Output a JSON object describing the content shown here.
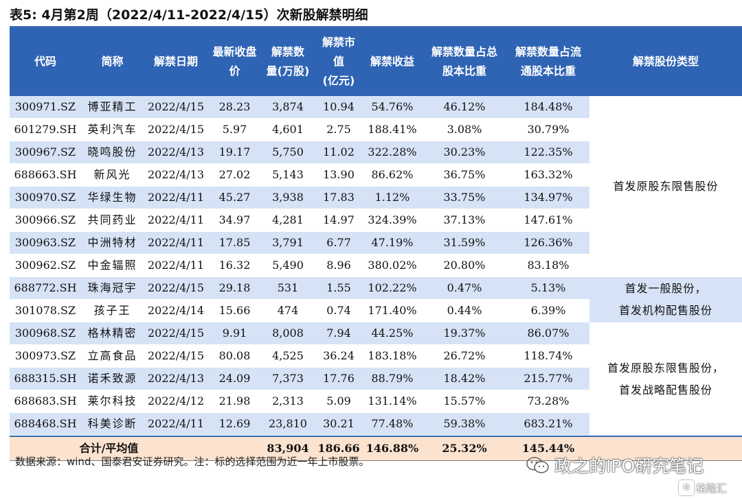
{
  "title": "表5:  4月第2周（2022/4/11-2022/4/15）次新股解禁明细",
  "table": {
    "headers": [
      "代码",
      "简称",
      "解禁日期",
      "最新收盘\n价",
      "解禁数\n量(万股)",
      "解禁市\n值\n(亿元)",
      "解禁收益",
      "解禁数量占总\n股本比重",
      "解禁数量占流\n通股本比重",
      "解禁股份类型"
    ],
    "rows": [
      [
        "300971.SZ",
        "博亚精工",
        "2022/4/15",
        "28.23",
        "3,874",
        "10.94",
        "54.76%",
        "46.12%",
        "184.48%"
      ],
      [
        "601279.SH",
        "英利汽车",
        "2022/4/15",
        "5.97",
        "4,601",
        "2.75",
        "188.41%",
        "3.08%",
        "30.79%"
      ],
      [
        "300967.SZ",
        "晓鸣股份",
        "2022/4/13",
        "19.17",
        "5,750",
        "11.02",
        "322.28%",
        "30.23%",
        "122.35%"
      ],
      [
        "688663.SH",
        "新风光",
        "2022/4/13",
        "27.02",
        "5,143",
        "13.90",
        "86.62%",
        "36.75%",
        "163.32%"
      ],
      [
        "300970.SZ",
        "华绿生物",
        "2022/4/11",
        "45.27",
        "3,938",
        "17.83",
        "1.12%",
        "33.75%",
        "134.97%"
      ],
      [
        "300966.SZ",
        "共同药业",
        "2022/4/11",
        "34.97",
        "4,281",
        "14.97",
        "324.39%",
        "37.13%",
        "147.61%"
      ],
      [
        "300963.SZ",
        "中洲特材",
        "2022/4/11",
        "17.85",
        "3,791",
        "6.77",
        "47.19%",
        "31.59%",
        "126.36%"
      ],
      [
        "300962.SZ",
        "中金辐照",
        "2022/4/11",
        "16.32",
        "5,490",
        "8.96",
        "380.02%",
        "20.80%",
        "83.18%"
      ],
      [
        "688772.SH",
        "珠海冠宇",
        "2022/4/15",
        "29.18",
        "531",
        "1.55",
        "102.22%",
        "0.47%",
        "5.13%"
      ],
      [
        "301078.SZ",
        "孩子王",
        "2022/4/14",
        "15.66",
        "474",
        "0.74",
        "171.40%",
        "0.44%",
        "6.39%"
      ],
      [
        "300968.SZ",
        "格林精密",
        "2022/4/15",
        "9.91",
        "8,008",
        "7.94",
        "44.25%",
        "19.37%",
        "86.07%"
      ],
      [
        "300973.SZ",
        "立高食品",
        "2022/4/15",
        "80.08",
        "4,525",
        "36.24",
        "183.18%",
        "26.72%",
        "118.74%"
      ],
      [
        "688315.SH",
        "诺禾致源",
        "2022/4/13",
        "24.09",
        "7,373",
        "17.76",
        "88.79%",
        "18.42%",
        "215.77%"
      ],
      [
        "688683.SH",
        "莱尔科技",
        "2022/4/12",
        "21.98",
        "2,313",
        "5.09",
        "131.14%",
        "15.57%",
        "73.28%"
      ],
      [
        "688468.SH",
        "科美诊断",
        "2022/4/11",
        "12.69",
        "23,810",
        "30.21",
        "77.48%",
        "59.38%",
        "683.21%"
      ]
    ],
    "types": [
      {
        "label": "首发原股东限售股份",
        "span": 8
      },
      {
        "label": "首发一般股份，\n首发机构配售股份",
        "span": 2
      },
      {
        "label": "首发原股东限售股份，\n首发战略配售股份",
        "span": 5
      }
    ],
    "total": {
      "label": "合计/平均值",
      "shares": "83,904",
      "value": "186.66",
      "gain": "146.88%",
      "total_ratio": "25.32%",
      "float_ratio": "145.44%"
    }
  },
  "footnote": "数据来源：wind、国泰君安证券研究。注：标的选择范围为近一年上市股票。",
  "watermark": {
    "text": "政之的IPO研究笔记",
    "icon": "wechat-icon"
  },
  "watermark2": {
    "text": "格隆汇",
    "icon": "gelonghui-logo-icon"
  }
}
